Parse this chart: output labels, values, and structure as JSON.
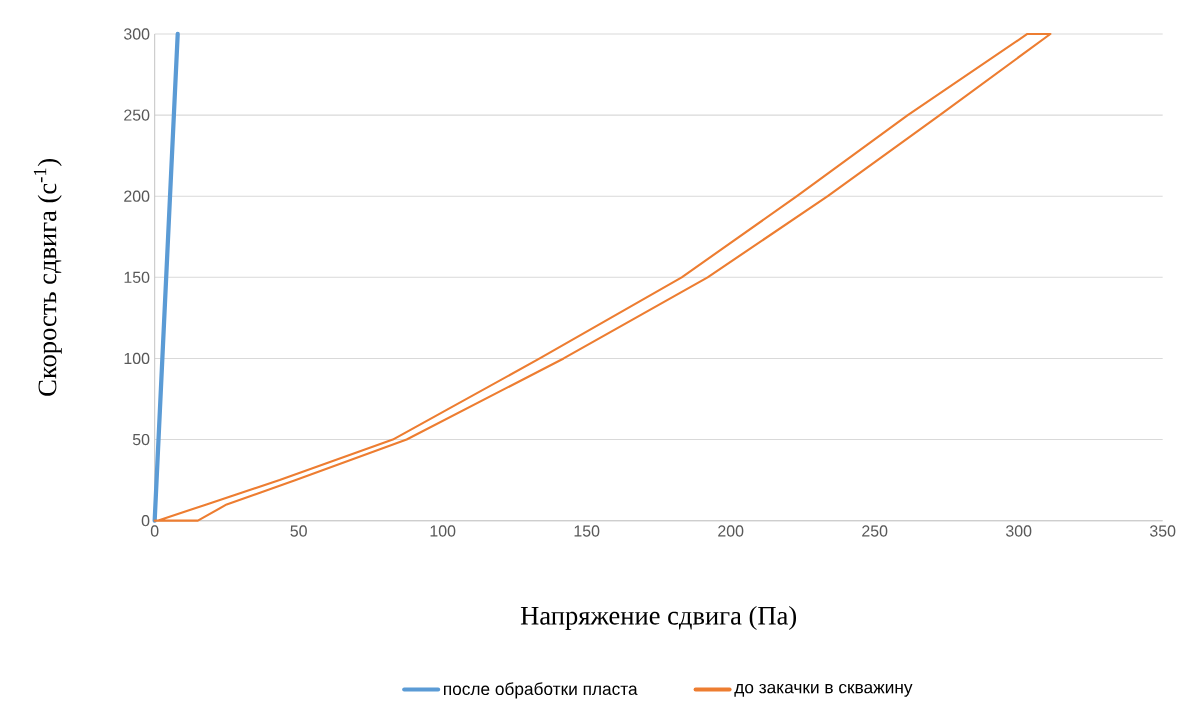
{
  "chart_data": {
    "type": "line",
    "xlabel": "Напряжение сдвига (Па)",
    "ylabel": "Скорость сдвига (с$^{-1}$)",
    "xlim": [
      0,
      350
    ],
    "ylim": [
      0,
      300
    ],
    "xticks": [
      0,
      50,
      100,
      150,
      200,
      250,
      300,
      350
    ],
    "yticks": [
      0,
      50,
      100,
      150,
      200,
      250,
      300
    ],
    "grid": "y",
    "legend": "bottom",
    "marker": "none",
    "line_style": "solid",
    "series": [
      {
        "name": "после обработки пласта",
        "color": "#5b9bd5",
        "x": [
          0,
          8
        ],
        "values": [
          0,
          300
        ]
      },
      {
        "name": "до закачки в скважину",
        "color": "#ed7d31",
        "x": [
          0,
          15,
          25,
          49,
          87.5,
          142,
          192,
          233.7,
          272.6,
          311,
          303,
          261.5,
          223,
          183,
          133.7,
          82.7,
          43.4,
          18,
          1
        ],
        "values": [
          0,
          0,
          10,
          25,
          50,
          100,
          150,
          200,
          250,
          300,
          300,
          250,
          200,
          150,
          100,
          50,
          25,
          10,
          0
        ]
      }
    ]
  }
}
